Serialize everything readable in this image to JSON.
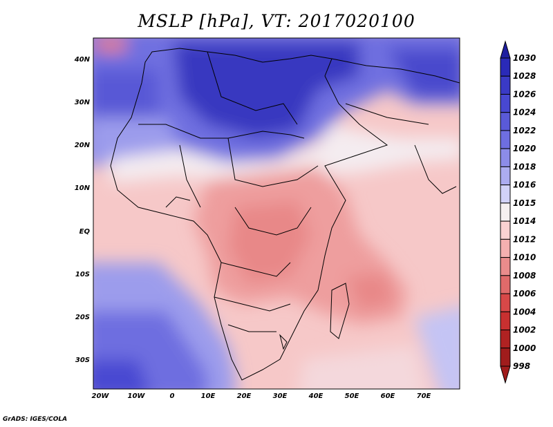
{
  "title": "MSLP [hPa], VT: 2017020100",
  "credit": "GrADS: IGES/COLA",
  "map": {
    "lon_ticks": [
      "20W",
      "10W",
      "0",
      "10E",
      "20E",
      "30E",
      "40E",
      "50E",
      "60E",
      "70E"
    ],
    "lat_ticks": [
      "40N",
      "30N",
      "20N",
      "10N",
      "EQ",
      "10S",
      "20S",
      "30S"
    ]
  },
  "colorbar": {
    "levels": [
      "1030",
      "1028",
      "1026",
      "1024",
      "1022",
      "1020",
      "1018",
      "1016",
      "1015",
      "1014",
      "1012",
      "1010",
      "1008",
      "1006",
      "1004",
      "1002",
      "1000",
      "998"
    ],
    "colors": [
      "#1e1ea0",
      "#2a2ab8",
      "#3a3ac6",
      "#4848d2",
      "#5a5ad8",
      "#6e6ee0",
      "#8c8ce8",
      "#acacf0",
      "#d2d2f8",
      "#f6f0f0",
      "#fad2d2",
      "#f4b0b0",
      "#ea8c8c",
      "#e06a6a",
      "#d84848",
      "#c83030",
      "#b02222",
      "#a01c1c"
    ]
  },
  "colors": {
    "high": "#3a3ac6",
    "low": "#f0a0a0",
    "neutral": "#f6f0f0"
  }
}
